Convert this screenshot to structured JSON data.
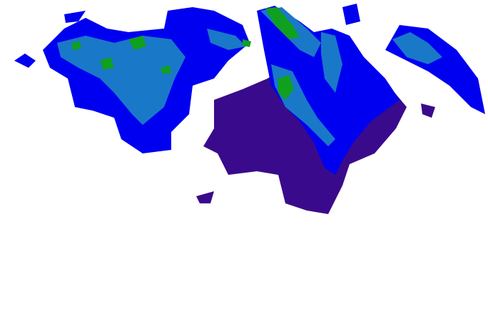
{
  "map": {
    "type": "radar-reflectivity",
    "colors": {
      "light": "#3a0a8c",
      "moderate": "#0000f0",
      "heavy": "#1a78c8",
      "intense": "#10a020"
    }
  }
}
